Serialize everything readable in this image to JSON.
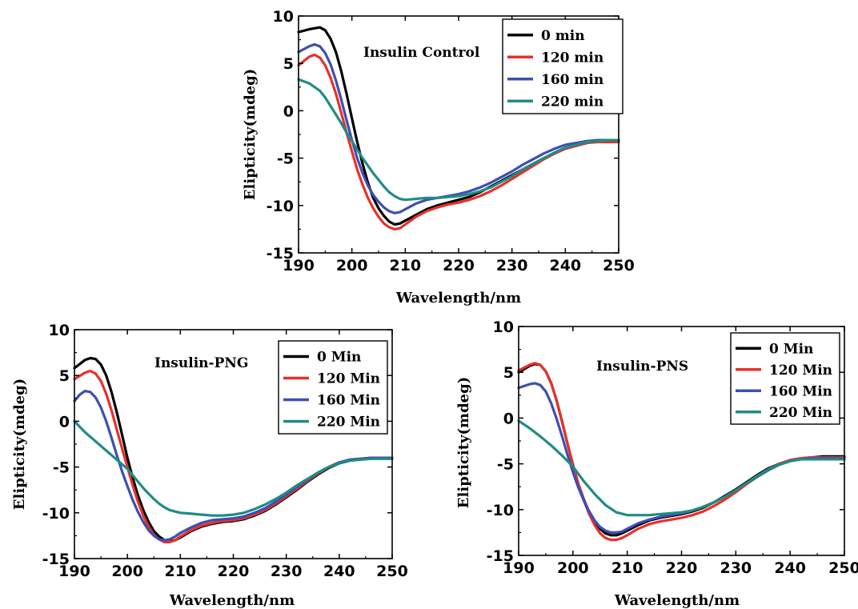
{
  "chart_data": [
    {
      "type": "line",
      "title": "Insulin Control",
      "xlabel": "Wavelength/nm",
      "ylabel": "Elipticity(mdeg)",
      "xlim": [
        190,
        250
      ],
      "ylim": [
        -15,
        10
      ],
      "x_ticks": [
        190,
        200,
        210,
        220,
        230,
        240,
        250
      ],
      "y_ticks": [
        10,
        5,
        0,
        -5,
        -10,
        -15
      ],
      "grid": false,
      "legend": "top-right",
      "series": [
        {
          "name": "0 min",
          "color": "#000000",
          "x": [
            190,
            192,
            194,
            195,
            196,
            197,
            198,
            199,
            200,
            201,
            202,
            203,
            204,
            205,
            206,
            207,
            208,
            209,
            210,
            212,
            214,
            216,
            218,
            220,
            222,
            224,
            226,
            228,
            230,
            232,
            234,
            236,
            238,
            240,
            242,
            244,
            246,
            248,
            250
          ],
          "y": [
            8.3,
            8.6,
            8.8,
            8.5,
            7.6,
            6.2,
            4.2,
            1.8,
            -0.8,
            -3.3,
            -5.6,
            -7.6,
            -9.2,
            -10.3,
            -11.1,
            -11.7,
            -12.0,
            -11.9,
            -11.6,
            -11.0,
            -10.4,
            -10.0,
            -9.7,
            -9.4,
            -9.1,
            -8.6,
            -8.0,
            -7.4,
            -6.8,
            -6.2,
            -5.6,
            -5.0,
            -4.5,
            -4.0,
            -3.7,
            -3.4,
            -3.2,
            -3.1,
            -3.1
          ]
        },
        {
          "name": "120 min",
          "color": "#e8302a",
          "x": [
            190,
            192,
            193,
            194,
            195,
            196,
            197,
            198,
            199,
            200,
            201,
            202,
            203,
            204,
            205,
            206,
            207,
            208,
            209,
            210,
            212,
            214,
            216,
            218,
            220,
            222,
            224,
            226,
            228,
            230,
            232,
            234,
            236,
            238,
            240,
            242,
            244,
            246,
            248,
            250
          ],
          "y": [
            4.8,
            5.7,
            5.9,
            5.6,
            4.8,
            3.5,
            1.8,
            -0.2,
            -2.3,
            -4.3,
            -6.2,
            -7.8,
            -9.2,
            -10.3,
            -11.2,
            -11.9,
            -12.3,
            -12.5,
            -12.4,
            -12.0,
            -11.2,
            -10.6,
            -10.2,
            -9.9,
            -9.7,
            -9.4,
            -9.0,
            -8.5,
            -7.9,
            -7.2,
            -6.5,
            -5.8,
            -5.1,
            -4.5,
            -4.0,
            -3.7,
            -3.4,
            -3.3,
            -3.3,
            -3.3
          ]
        },
        {
          "name": "160 min",
          "color": "#3c4fb3",
          "x": [
            190,
            192,
            193,
            194,
            195,
            196,
            197,
            198,
            199,
            200,
            201,
            202,
            203,
            204,
            205,
            206,
            207,
            208,
            209,
            210,
            212,
            214,
            216,
            218,
            220,
            222,
            224,
            226,
            228,
            230,
            232,
            234,
            236,
            238,
            240,
            242,
            244,
            246,
            248,
            250
          ],
          "y": [
            6.2,
            6.8,
            7.0,
            6.8,
            6.1,
            4.9,
            3.2,
            1.2,
            -1.0,
            -3.1,
            -5.0,
            -6.6,
            -7.9,
            -8.9,
            -9.6,
            -10.2,
            -10.6,
            -10.8,
            -10.7,
            -10.4,
            -9.8,
            -9.4,
            -9.2,
            -9.0,
            -8.8,
            -8.5,
            -8.1,
            -7.6,
            -7.0,
            -6.4,
            -5.7,
            -5.1,
            -4.5,
            -4.0,
            -3.6,
            -3.4,
            -3.2,
            -3.1,
            -3.1,
            -3.1
          ]
        },
        {
          "name": "220 min",
          "color": "#1f8c84",
          "x": [
            190,
            192,
            194,
            195,
            196,
            197,
            198,
            199,
            200,
            201,
            202,
            203,
            204,
            205,
            206,
            207,
            208,
            209,
            210,
            212,
            214,
            216,
            218,
            220,
            222,
            224,
            226,
            228,
            230,
            232,
            234,
            236,
            238,
            240,
            242,
            244,
            246,
            248,
            250
          ],
          "y": [
            3.3,
            2.9,
            2.1,
            1.4,
            0.5,
            -0.4,
            -1.3,
            -2.3,
            -3.2,
            -4.1,
            -5.0,
            -5.8,
            -6.6,
            -7.3,
            -8.0,
            -8.6,
            -9.0,
            -9.3,
            -9.4,
            -9.3,
            -9.2,
            -9.2,
            -9.1,
            -9.0,
            -8.8,
            -8.5,
            -8.1,
            -7.5,
            -6.9,
            -6.2,
            -5.6,
            -5.0,
            -4.4,
            -3.9,
            -3.6,
            -3.3,
            -3.2,
            -3.1,
            -3.1
          ]
        }
      ]
    },
    {
      "type": "line",
      "title": "Insulin-PNG",
      "xlabel": "Wavelength/nm",
      "ylabel": "Elipticity(mdeg)",
      "xlim": [
        190,
        250
      ],
      "ylim": [
        -15,
        10
      ],
      "x_ticks": [
        190,
        200,
        210,
        220,
        230,
        240,
        250
      ],
      "y_ticks": [
        10,
        5,
        0,
        -5,
        -10,
        -15
      ],
      "grid": false,
      "legend": "top-right",
      "series": [
        {
          "name": "0 Min",
          "color": "#000000",
          "x": [
            190,
            192,
            193,
            194,
            195,
            196,
            197,
            198,
            199,
            200,
            201,
            202,
            203,
            204,
            205,
            206,
            207,
            208,
            209,
            210,
            212,
            214,
            216,
            218,
            220,
            222,
            224,
            226,
            228,
            230,
            232,
            234,
            236,
            238,
            240,
            242,
            244,
            246,
            248,
            250
          ],
          "y": [
            5.8,
            6.7,
            6.9,
            6.8,
            6.2,
            5.0,
            3.2,
            1.0,
            -1.5,
            -4.0,
            -6.2,
            -8.1,
            -9.7,
            -11.0,
            -12.0,
            -12.6,
            -13.0,
            -13.1,
            -13.0,
            -12.7,
            -12.0,
            -11.5,
            -11.2,
            -11.0,
            -10.9,
            -10.7,
            -10.3,
            -9.8,
            -9.1,
            -8.3,
            -7.5,
            -6.6,
            -5.8,
            -5.1,
            -4.6,
            -4.3,
            -4.1,
            -4.0,
            -4.0,
            -4.0
          ]
        },
        {
          "name": "120 Min",
          "color": "#e8302a",
          "x": [
            190,
            192,
            193,
            194,
            195,
            196,
            197,
            198,
            199,
            200,
            201,
            202,
            203,
            204,
            205,
            206,
            207,
            208,
            209,
            210,
            212,
            214,
            216,
            218,
            220,
            222,
            224,
            226,
            228,
            230,
            232,
            234,
            236,
            238,
            240,
            242,
            244,
            246,
            248,
            250
          ],
          "y": [
            4.6,
            5.3,
            5.5,
            5.2,
            4.4,
            3.0,
            1.2,
            -0.9,
            -3.0,
            -5.0,
            -7.0,
            -8.8,
            -10.3,
            -11.5,
            -12.4,
            -12.9,
            -13.2,
            -13.2,
            -13.0,
            -12.6,
            -11.9,
            -11.4,
            -11.1,
            -10.9,
            -10.8,
            -10.6,
            -10.2,
            -9.7,
            -9.0,
            -8.2,
            -7.4,
            -6.5,
            -5.7,
            -5.0,
            -4.5,
            -4.2,
            -4.1,
            -4.0,
            -4.0,
            -4.0
          ]
        },
        {
          "name": "160 Min",
          "color": "#3c4fb3",
          "x": [
            190,
            191,
            192,
            193,
            194,
            195,
            196,
            197,
            198,
            199,
            200,
            201,
            202,
            203,
            204,
            205,
            206,
            207,
            208,
            209,
            210,
            212,
            214,
            216,
            218,
            220,
            222,
            224,
            226,
            228,
            230,
            232,
            234,
            236,
            238,
            240,
            242,
            244,
            246,
            248,
            250
          ],
          "y": [
            2.2,
            2.9,
            3.3,
            3.2,
            2.6,
            1.5,
            0.0,
            -1.8,
            -3.7,
            -5.5,
            -7.1,
            -8.6,
            -9.9,
            -11.0,
            -11.9,
            -12.5,
            -12.9,
            -13.0,
            -12.9,
            -12.6,
            -12.2,
            -11.6,
            -11.1,
            -10.8,
            -10.7,
            -10.6,
            -10.4,
            -10.0,
            -9.5,
            -8.8,
            -8.0,
            -7.2,
            -6.4,
            -5.6,
            -5.0,
            -4.5,
            -4.2,
            -4.1,
            -4.0,
            -4.0,
            -4.0
          ]
        },
        {
          "name": "220 Min",
          "color": "#1f8c84",
          "x": [
            190,
            192,
            194,
            196,
            198,
            200,
            201,
            202,
            203,
            204,
            205,
            206,
            207,
            208,
            210,
            212,
            214,
            216,
            218,
            220,
            222,
            224,
            226,
            228,
            230,
            232,
            234,
            236,
            238,
            240,
            242,
            244,
            246,
            248,
            250
          ],
          "y": [
            0.0,
            -1.2,
            -2.2,
            -3.2,
            -4.2,
            -5.2,
            -5.9,
            -6.6,
            -7.3,
            -7.9,
            -8.5,
            -9.0,
            -9.4,
            -9.7,
            -10.0,
            -10.1,
            -10.2,
            -10.3,
            -10.3,
            -10.2,
            -10.0,
            -9.6,
            -9.1,
            -8.5,
            -7.8,
            -7.0,
            -6.3,
            -5.6,
            -5.0,
            -4.6,
            -4.3,
            -4.2,
            -4.1,
            -4.1,
            -4.1
          ]
        }
      ]
    },
    {
      "type": "line",
      "title": "Insulin-PNS",
      "xlabel": "Wavelength/nm",
      "ylabel": "Elipticity(mdeg)",
      "xlim": [
        190,
        250
      ],
      "ylim": [
        -15,
        10
      ],
      "x_ticks": [
        190,
        200,
        210,
        220,
        230,
        240,
        250
      ],
      "y_ticks": [
        10,
        5,
        0,
        -5,
        -10,
        -15
      ],
      "grid": false,
      "legend": "top-right",
      "series": [
        {
          "name": "0 Min",
          "color": "#000000",
          "x": [
            190,
            192,
            193,
            194,
            195,
            196,
            197,
            198,
            199,
            200,
            201,
            202,
            203,
            204,
            205,
            206,
            207,
            208,
            209,
            210,
            212,
            214,
            216,
            218,
            220,
            222,
            224,
            226,
            228,
            230,
            232,
            234,
            236,
            238,
            240,
            242,
            244,
            246,
            248,
            250
          ],
          "y": [
            5.0,
            5.7,
            5.9,
            5.8,
            5.1,
            3.8,
            1.9,
            -0.4,
            -2.8,
            -5.1,
            -7.2,
            -8.9,
            -10.3,
            -11.4,
            -12.1,
            -12.6,
            -12.8,
            -12.8,
            -12.6,
            -12.3,
            -11.7,
            -11.2,
            -10.9,
            -10.7,
            -10.5,
            -10.2,
            -9.8,
            -9.2,
            -8.5,
            -7.8,
            -7.0,
            -6.2,
            -5.5,
            -5.0,
            -4.6,
            -4.4,
            -4.3,
            -4.2,
            -4.2,
            -4.2
          ]
        },
        {
          "name": "120 Min",
          "color": "#e8302a",
          "x": [
            190,
            192,
            193,
            194,
            195,
            196,
            197,
            198,
            199,
            200,
            201,
            202,
            203,
            204,
            205,
            206,
            207,
            208,
            209,
            210,
            212,
            214,
            216,
            218,
            220,
            222,
            224,
            226,
            228,
            230,
            232,
            234,
            236,
            238,
            240,
            242,
            244,
            246,
            248,
            250
          ],
          "y": [
            5.2,
            5.8,
            6.0,
            5.8,
            5.1,
            3.8,
            1.9,
            -0.4,
            -2.8,
            -5.1,
            -7.2,
            -9.0,
            -10.5,
            -11.7,
            -12.6,
            -13.1,
            -13.3,
            -13.3,
            -13.1,
            -12.8,
            -12.1,
            -11.6,
            -11.3,
            -11.1,
            -10.9,
            -10.6,
            -10.2,
            -9.6,
            -8.9,
            -8.1,
            -7.2,
            -6.4,
            -5.6,
            -5.0,
            -4.6,
            -4.4,
            -4.3,
            -4.3,
            -4.3,
            -4.3
          ]
        },
        {
          "name": "160 Min",
          "color": "#3c4fb3",
          "x": [
            190,
            192,
            193,
            194,
            195,
            196,
            197,
            198,
            199,
            200,
            201,
            202,
            203,
            204,
            205,
            206,
            207,
            208,
            209,
            210,
            212,
            214,
            216,
            218,
            220,
            222,
            224,
            226,
            228,
            230,
            232,
            234,
            236,
            238,
            240,
            242,
            244,
            246,
            248,
            250
          ],
          "y": [
            3.3,
            3.7,
            3.8,
            3.6,
            2.9,
            1.6,
            -0.1,
            -2.0,
            -4.0,
            -5.9,
            -7.6,
            -9.0,
            -10.2,
            -11.2,
            -11.9,
            -12.3,
            -12.5,
            -12.5,
            -12.4,
            -12.1,
            -11.5,
            -11.1,
            -10.8,
            -10.6,
            -10.4,
            -10.1,
            -9.7,
            -9.2,
            -8.6,
            -7.9,
            -7.1,
            -6.4,
            -5.7,
            -5.1,
            -4.7,
            -4.5,
            -4.4,
            -4.4,
            -4.4,
            -4.4
          ]
        },
        {
          "name": "220 Min",
          "color": "#1f8c84",
          "x": [
            190,
            192,
            194,
            196,
            198,
            200,
            201,
            202,
            203,
            204,
            205,
            206,
            207,
            208,
            210,
            212,
            214,
            216,
            218,
            220,
            222,
            224,
            226,
            228,
            230,
            232,
            234,
            236,
            238,
            240,
            242,
            244,
            246,
            248,
            250
          ],
          "y": [
            -0.3,
            -1.1,
            -2.0,
            -3.0,
            -4.1,
            -5.3,
            -6.1,
            -6.9,
            -7.6,
            -8.3,
            -8.9,
            -9.5,
            -9.9,
            -10.3,
            -10.6,
            -10.6,
            -10.6,
            -10.5,
            -10.4,
            -10.3,
            -10.1,
            -9.7,
            -9.2,
            -8.6,
            -7.9,
            -7.1,
            -6.3,
            -5.6,
            -5.1,
            -4.7,
            -4.5,
            -4.5,
            -4.5,
            -4.5,
            -4.5
          ]
        }
      ]
    }
  ]
}
